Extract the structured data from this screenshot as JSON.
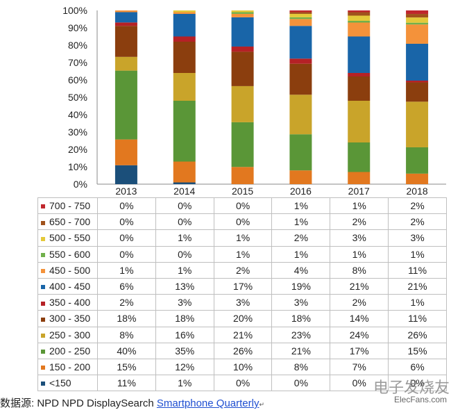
{
  "chart_data": {
    "type": "bar",
    "stacked": true,
    "normalized": true,
    "categories": [
      "2013",
      "2014",
      "2015",
      "2016",
      "2017",
      "2018"
    ],
    "yticks": [
      "0%",
      "10%",
      "20%",
      "30%",
      "40%",
      "50%",
      "60%",
      "70%",
      "80%",
      "90%",
      "100%"
    ],
    "ylim": [
      0,
      100
    ],
    "series": [
      {
        "name": "<150",
        "color": "#1b4f7a",
        "values": [
          11,
          1,
          0,
          0,
          0,
          0
        ]
      },
      {
        "name": "150 - 200",
        "color": "#e2781f",
        "values": [
          15,
          12,
          10,
          8,
          7,
          6
        ]
      },
      {
        "name": "200 - 250",
        "color": "#5a9637",
        "values": [
          40,
          35,
          26,
          21,
          17,
          15
        ]
      },
      {
        "name": "250 - 300",
        "color": "#c9a42a",
        "values": [
          8,
          16,
          21,
          23,
          24,
          26
        ]
      },
      {
        "name": "300 - 350",
        "color": "#8b3e0e",
        "values": [
          18,
          18,
          20,
          18,
          14,
          11
        ]
      },
      {
        "name": "350 - 400",
        "color": "#b52126",
        "values": [
          2,
          3,
          3,
          3,
          2,
          1
        ]
      },
      {
        "name": "400 - 450",
        "color": "#1965a8",
        "values": [
          6,
          13,
          17,
          19,
          21,
          21
        ]
      },
      {
        "name": "450 - 500",
        "color": "#f4923a",
        "values": [
          1,
          1,
          2,
          4,
          8,
          11
        ]
      },
      {
        "name": "550 - 600",
        "color": "#71b04b",
        "values": [
          0,
          0,
          1,
          1,
          1,
          1
        ]
      },
      {
        "name": "500 - 550",
        "color": "#e4c93a",
        "values": [
          0,
          1,
          1,
          2,
          3,
          3
        ]
      },
      {
        "name": "650 - 700",
        "color": "#a0521c",
        "values": [
          0,
          0,
          0,
          1,
          2,
          2
        ]
      },
      {
        "name": "700 - 750",
        "color": "#c0272d",
        "values": [
          0,
          0,
          0,
          1,
          1,
          2
        ]
      }
    ],
    "table_row_order": [
      "700 - 750",
      "650 - 700",
      "500 - 550",
      "550 - 600",
      "450 - 500",
      "400 - 450",
      "350 - 400",
      "300 - 350",
      "250 - 300",
      "200 - 250",
      "150 - 200",
      "<150"
    ],
    "unit": "%"
  },
  "source": {
    "label": "数据源: NPD NPD DisplaySearch ",
    "link": "Smartphone Quarterly",
    "mark": "↵"
  },
  "watermark": {
    "logo": "电子发烧友",
    "site": "ElecFans.com"
  }
}
